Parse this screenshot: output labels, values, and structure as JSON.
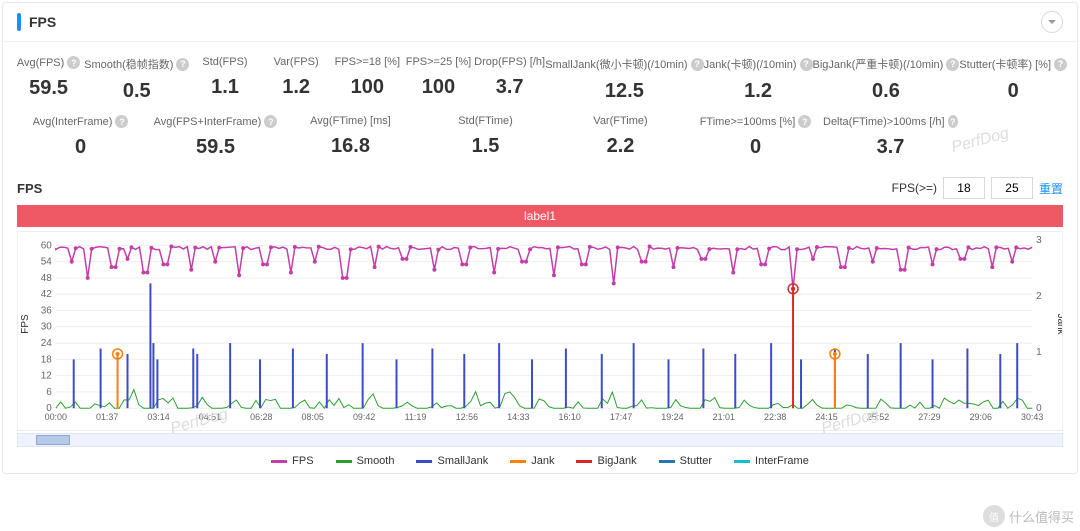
{
  "header": {
    "title": "FPS"
  },
  "watermark": "PerfDog",
  "site_badge": "什么值得买",
  "metrics_r1": [
    {
      "label": "Avg(FPS)",
      "value": "59.5",
      "help": true
    },
    {
      "label": "Smooth(稳帧指数)",
      "value": "0.5",
      "help": true
    },
    {
      "label": "Std(FPS)",
      "value": "1.1"
    },
    {
      "label": "Var(FPS)",
      "value": "1.2"
    },
    {
      "label": "FPS>=18 [%]",
      "value": "100"
    },
    {
      "label": "FPS>=25 [%]",
      "value": "100"
    },
    {
      "label": "Drop(FPS) [/h]",
      "value": "3.7"
    },
    {
      "label": "SmallJank(微小卡顿)(/10min)",
      "value": "12.5",
      "help": true
    },
    {
      "label": "Jank(卡顿)(/10min)",
      "value": "1.2",
      "help": true
    },
    {
      "label": "BigJank(严重卡顿)(/10min)",
      "value": "0.6",
      "help": true
    },
    {
      "label": "Stutter(卡顿率) [%]",
      "value": "0",
      "help": true
    }
  ],
  "metrics_r2": [
    {
      "label": "Avg(InterFrame)",
      "value": "0",
      "help": true
    },
    {
      "label": "Avg(FPS+InterFrame)",
      "value": "59.5",
      "help": true
    },
    {
      "label": "Avg(FTime) [ms]",
      "value": "16.8"
    },
    {
      "label": "Std(FTime)",
      "value": "1.5"
    },
    {
      "label": "Var(FTime)",
      "value": "2.2"
    },
    {
      "label": "FTime>=100ms [%]",
      "value": "0",
      "help": true
    },
    {
      "label": "Delta(FTime)>100ms [/h]",
      "value": "3.7",
      "help": true
    }
  ],
  "chart": {
    "title": "FPS",
    "fps_ge_label": "FPS(>=)",
    "fps_low": "18",
    "fps_high": "25",
    "reset": "重置",
    "label_bar": "label1",
    "label_bar_color": "#ef5865",
    "left_axis": "FPS",
    "right_axis": "Jank",
    "ylim_left": [
      0,
      62
    ],
    "yticks_left": [
      0,
      6,
      12,
      18,
      24,
      30,
      36,
      42,
      48,
      54,
      60
    ],
    "ylim_right": [
      0,
      3
    ],
    "yticks_right": [
      0,
      1,
      2,
      3
    ],
    "xticks": [
      "00:00",
      "01:37",
      "03:14",
      "04:51",
      "06:28",
      "08:05",
      "09:42",
      "11:19",
      "12:56",
      "14:33",
      "16:10",
      "17:47",
      "19:24",
      "21:01",
      "22:38",
      "24:15",
      "25:52",
      "27:29",
      "29:06",
      "30:43"
    ],
    "grid_color": "#eeeeee",
    "colors": {
      "fps": "#c43da8",
      "smooth": "#2ca02c",
      "smalljank": "#3b4cca",
      "jank": "#ff7f0e",
      "bigjank": "#d62728",
      "stutter": "#1f77b4",
      "interframe": "#17becf"
    },
    "fps_baseline": 59,
    "fps_dips": [
      [
        15,
        54
      ],
      [
        32,
        48
      ],
      [
        58,
        52
      ],
      [
        72,
        55
      ],
      [
        90,
        50
      ],
      [
        110,
        53
      ],
      [
        135,
        51
      ],
      [
        160,
        54
      ],
      [
        185,
        49
      ],
      [
        210,
        53
      ],
      [
        235,
        50
      ],
      [
        260,
        54
      ],
      [
        290,
        48
      ],
      [
        320,
        52
      ],
      [
        350,
        55
      ],
      [
        380,
        51
      ],
      [
        410,
        53
      ],
      [
        440,
        50
      ],
      [
        470,
        54
      ],
      [
        500,
        49
      ],
      [
        530,
        53
      ],
      [
        560,
        46
      ],
      [
        590,
        54
      ],
      [
        620,
        52
      ],
      [
        650,
        55
      ],
      [
        680,
        50
      ],
      [
        710,
        53
      ],
      [
        740,
        44
      ],
      [
        760,
        55
      ],
      [
        790,
        52
      ],
      [
        820,
        54
      ],
      [
        850,
        51
      ],
      [
        880,
        53
      ],
      [
        910,
        55
      ],
      [
        940,
        52
      ],
      [
        960,
        54
      ]
    ],
    "smalljank_spikes": [
      18,
      45,
      72,
      95,
      98,
      102,
      138,
      142,
      175,
      205,
      238,
      272,
      308,
      342,
      378,
      410,
      445,
      478,
      512,
      548,
      580,
      615,
      650,
      682,
      718,
      748,
      782,
      815,
      848,
      880,
      915,
      948,
      965
    ],
    "smalljank_heights": [
      18,
      22,
      20,
      46,
      24,
      18,
      22,
      20,
      24,
      18,
      22,
      20,
      24,
      18,
      22,
      20,
      24,
      18,
      22,
      20,
      24,
      18,
      22,
      20,
      24,
      18,
      22,
      20,
      24,
      18,
      22,
      20,
      24
    ],
    "jank_markers": [
      [
        62,
        20
      ],
      [
        782,
        20
      ]
    ],
    "bigjank_markers": [
      [
        740,
        44
      ]
    ],
    "smooth_noise_amp": 4
  },
  "legend": [
    {
      "name": "FPS",
      "color": "#c43da8"
    },
    {
      "name": "Smooth",
      "color": "#2ca02c"
    },
    {
      "name": "SmallJank",
      "color": "#3b4cca"
    },
    {
      "name": "Jank",
      "color": "#ff7f0e"
    },
    {
      "name": "BigJank",
      "color": "#d62728"
    },
    {
      "name": "Stutter",
      "color": "#1f77b4"
    },
    {
      "name": "InterFrame",
      "color": "#17becf"
    }
  ]
}
